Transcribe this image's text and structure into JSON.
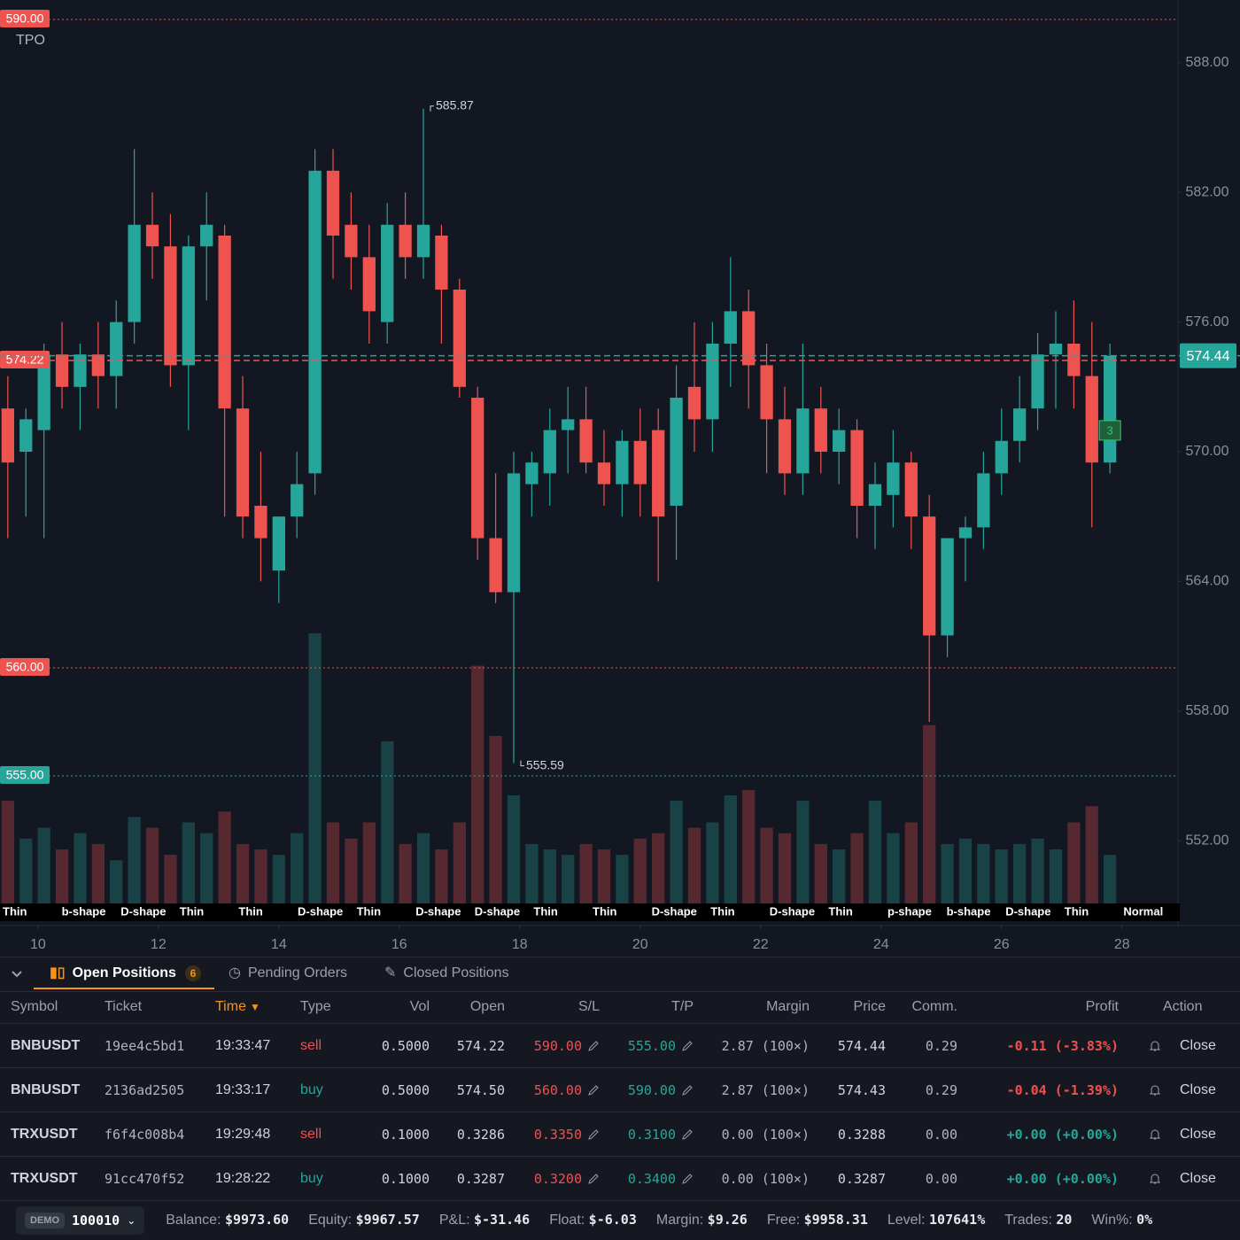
{
  "chart_data": {
    "type": "candlestick",
    "legend": "TPO",
    "xlim": [
      9.37,
      28.93
    ],
    "xticks": [
      10,
      12,
      14,
      16,
      18,
      20,
      22,
      24,
      26,
      28
    ],
    "ylim": [
      549.1,
      590.9
    ],
    "yticks": [
      {
        "value": 552,
        "label": "552.00"
      },
      {
        "value": 558,
        "label": "558.00"
      },
      {
        "value": 564,
        "label": "564.00"
      },
      {
        "value": 570,
        "label": "570.00"
      },
      {
        "value": 576,
        "label": "576.00"
      },
      {
        "value": 582,
        "label": "582.00"
      },
      {
        "value": 588,
        "label": "588.00"
      }
    ],
    "up_color": "#26a69a",
    "down_color": "#ef5350",
    "x": [
      9.5,
      9.8,
      10.1,
      10.4,
      10.7,
      11.0,
      11.3,
      11.6,
      11.9,
      12.2,
      12.5,
      12.8,
      13.1,
      13.4,
      13.7,
      14.0,
      14.3,
      14.6,
      14.9,
      15.2,
      15.5,
      15.8,
      16.1,
      16.4,
      16.7,
      17.0,
      17.3,
      17.6,
      17.9,
      18.2,
      18.5,
      18.8,
      19.1,
      19.4,
      19.7,
      20.0,
      20.3,
      20.6,
      20.9,
      21.2,
      21.5,
      21.8,
      22.1,
      22.4,
      22.7,
      23.0,
      23.3,
      23.6,
      23.9,
      24.2,
      24.5,
      24.8,
      25.1,
      25.4,
      25.7,
      26.0,
      26.3,
      26.6,
      26.9,
      27.2,
      27.5,
      27.8
    ],
    "open": [
      572,
      570,
      571,
      574.5,
      573,
      574.5,
      573.5,
      576,
      580.5,
      579.5,
      574,
      579.5,
      580,
      572,
      567.5,
      564.5,
      567,
      569,
      583,
      580.5,
      579,
      576,
      580.5,
      579,
      580,
      577.5,
      572.5,
      566,
      563.5,
      568.5,
      569,
      571,
      571.5,
      569.5,
      568.5,
      570.5,
      571,
      567.5,
      573,
      571.5,
      575,
      576.5,
      574,
      571.5,
      569,
      572,
      570,
      571,
      567.5,
      568,
      569.5,
      567,
      561.5,
      566,
      566.5,
      569,
      570.5,
      572,
      574.5,
      575,
      573.5,
      569.5
    ],
    "high": [
      573.5,
      572,
      575,
      576,
      575,
      576,
      577,
      584,
      582,
      581,
      580,
      582,
      580.5,
      573.5,
      570,
      567,
      570,
      584,
      584,
      582,
      580.5,
      581.5,
      582,
      585.87,
      580.5,
      578,
      573,
      569,
      570,
      570,
      572,
      573,
      573,
      571,
      571,
      572,
      572,
      574,
      576,
      576,
      579,
      577.5,
      575,
      573,
      575,
      573,
      572,
      571.5,
      569.5,
      571,
      570,
      568,
      566,
      567,
      570,
      572,
      573.5,
      575.5,
      576.5,
      577,
      576,
      575
    ],
    "low": [
      566,
      567,
      566,
      572,
      571,
      572,
      572,
      575,
      578,
      573,
      571,
      577,
      567,
      566,
      564,
      563,
      566,
      568,
      578,
      577.5,
      575,
      575,
      578,
      578,
      575,
      572.5,
      565,
      563,
      555.59,
      567,
      567.5,
      569,
      569,
      567.5,
      567,
      567,
      564,
      565,
      570,
      570,
      573,
      572,
      569,
      568,
      568,
      569,
      568.5,
      566,
      565.5,
      566.5,
      565.5,
      557.5,
      560.5,
      564,
      565.5,
      568,
      569.5,
      571,
      572,
      572,
      566.5,
      569
    ],
    "close": [
      569.5,
      571.5,
      574.5,
      573,
      574.5,
      573.5,
      576,
      580.5,
      579.5,
      574,
      579.5,
      580.5,
      572,
      567,
      566,
      567,
      568.5,
      583,
      580,
      579,
      576.5,
      580.5,
      579,
      580.5,
      577.5,
      573,
      566,
      563.5,
      569,
      569.5,
      571,
      571.5,
      569.5,
      568.5,
      570.5,
      568.5,
      567,
      572.5,
      571.5,
      575,
      576.5,
      574,
      571.5,
      569,
      572,
      570,
      571,
      567.5,
      568.5,
      569.5,
      567,
      561.5,
      566,
      566.5,
      569,
      570.5,
      572,
      574.5,
      575,
      573.5,
      569.5,
      574.44
    ],
    "vlim": [
      0,
      100
    ],
    "volume": [
      38,
      24,
      28,
      20,
      26,
      22,
      16,
      32,
      28,
      18,
      30,
      26,
      34,
      22,
      20,
      18,
      26,
      100,
      30,
      24,
      30,
      60,
      22,
      26,
      20,
      30,
      88,
      62,
      40,
      22,
      20,
      18,
      22,
      20,
      18,
      24,
      26,
      38,
      28,
      30,
      40,
      42,
      28,
      26,
      38,
      22,
      20,
      26,
      38,
      26,
      30,
      66,
      22,
      24,
      22,
      20,
      22,
      24,
      20,
      30,
      36,
      18
    ],
    "levels": [
      {
        "value": 590,
        "label": "590.00",
        "color": "#ef5350"
      },
      {
        "value": 574.22,
        "label": "574.22",
        "color": "#ef5350"
      },
      {
        "value": 574.44,
        "label": "574.44",
        "color": "#26a69a"
      },
      {
        "value": 560,
        "label": "560.00",
        "color": "#ef5350"
      },
      {
        "value": 555,
        "label": "555.00",
        "color": "#26a69a"
      }
    ],
    "annotations": [
      "585.87",
      "555.59"
    ],
    "order_badge": "3",
    "profiles": [
      "Thin",
      "b-shape",
      "D-shape",
      "Thin",
      "Thin",
      "D-shape",
      "Thin",
      "D-shape",
      "D-shape",
      "Thin",
      "Thin",
      "D-shape",
      "Thin",
      "D-shape",
      "Thin",
      "p-shape",
      "b-shape",
      "D-shape",
      "Thin",
      "Normal"
    ]
  },
  "panel": {
    "tabs": [
      {
        "label": "Open Positions",
        "count": "6"
      },
      {
        "label": "Pending Orders"
      },
      {
        "label": "Closed Positions"
      }
    ],
    "columns": [
      "Symbol",
      "Ticket",
      "Time",
      "Type",
      "Vol",
      "Open",
      "S/L",
      "T/P",
      "Margin",
      "Price",
      "Comm.",
      "Profit",
      "Action"
    ],
    "sort_indicator": "▼",
    "rows": [
      [
        "BNBUSDT",
        "19ee4c5bd1",
        "19:33:47",
        "sell",
        "0.5000",
        "574.22",
        "590.00",
        "555.00",
        "2.87 (100×)",
        "574.44",
        "0.29",
        "-0.11 (-3.83%)",
        "Close"
      ],
      [
        "BNBUSDT",
        "2136ad2505",
        "19:33:17",
        "buy",
        "0.5000",
        "574.50",
        "560.00",
        "590.00",
        "2.87 (100×)",
        "574.43",
        "0.29",
        "-0.04 (-1.39%)",
        "Close"
      ],
      [
        "TRXUSDT",
        "f6f4c008b4",
        "19:29:48",
        "sell",
        "0.1000",
        "0.3286",
        "0.3350",
        "0.3100",
        "0.00 (100×)",
        "0.3288",
        "0.00",
        "+0.00 (+0.00%)",
        "Close"
      ],
      [
        "TRXUSDT",
        "91cc470f52",
        "19:28:22",
        "buy",
        "0.1000",
        "0.3287",
        "0.3200",
        "0.3400",
        "0.00 (100×)",
        "0.3287",
        "0.00",
        "+0.00 (+0.00%)",
        "Close"
      ]
    ],
    "footer": {
      "badge": "DEMO",
      "account": "100010",
      "stats": [
        {
          "label": "Balance:",
          "value": "$9973.60"
        },
        {
          "label": "Equity:",
          "value": "$9967.57"
        },
        {
          "label": "P&L:",
          "value": "$-31.46"
        },
        {
          "label": "Float:",
          "value": "$-6.03"
        },
        {
          "label": "Margin:",
          "value": "$9.26"
        },
        {
          "label": "Free:",
          "value": "$9958.31"
        },
        {
          "label": "Level:",
          "value": "107641%"
        },
        {
          "label": "Trades:",
          "value": "20"
        },
        {
          "label": "Win%:",
          "value": "0%"
        }
      ]
    }
  }
}
